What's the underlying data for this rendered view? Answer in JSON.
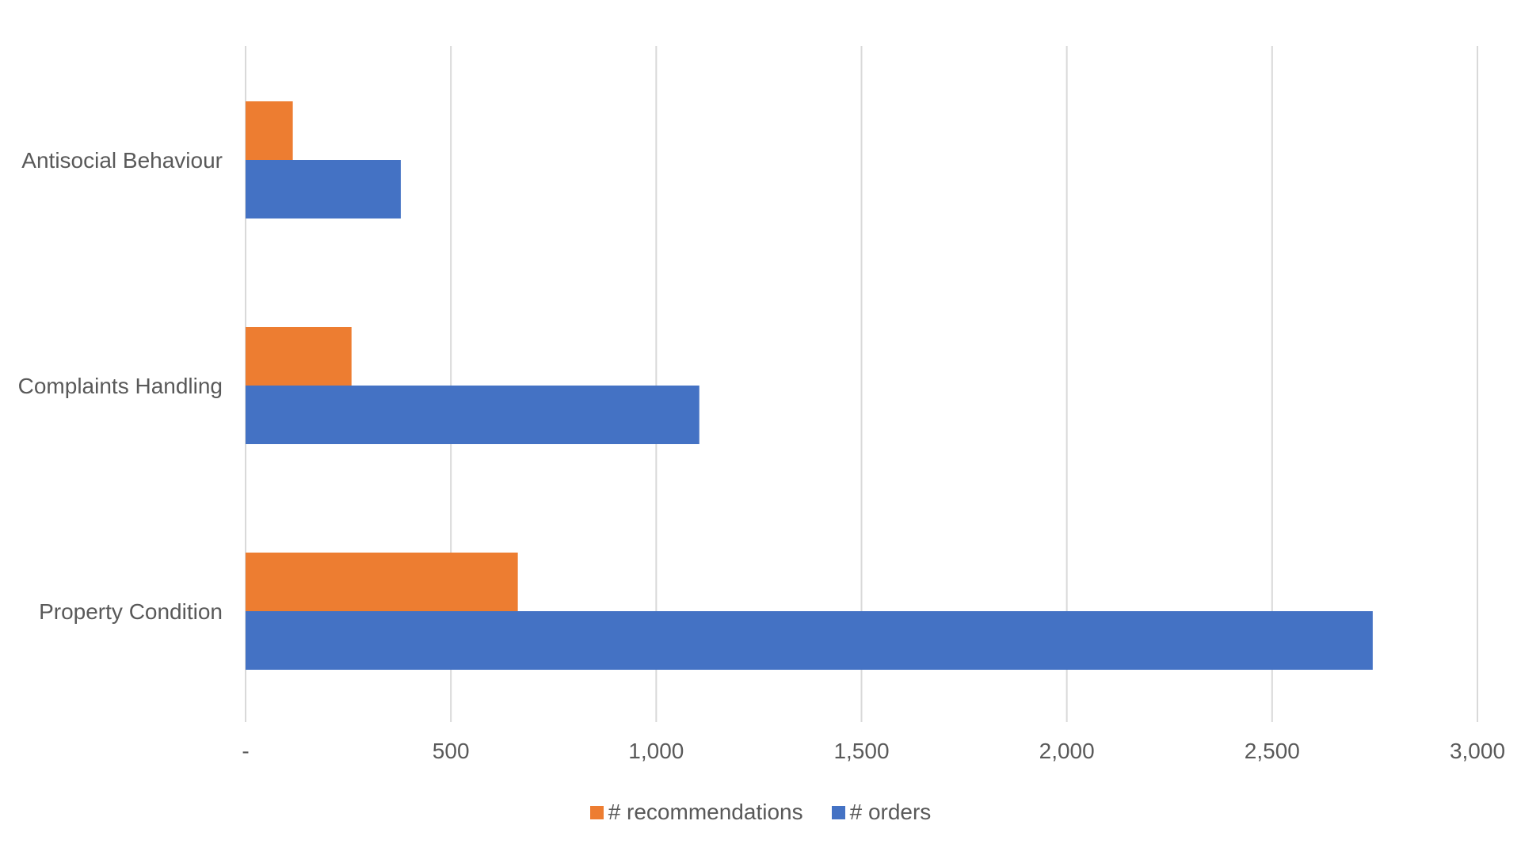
{
  "chart_data": {
    "type": "bar",
    "orientation": "horizontal",
    "categories": [
      "Antisocial Behaviour",
      "Complaints Handling",
      "Property Condition"
    ],
    "series": [
      {
        "name": "# recommendations",
        "color": "#ED7D31",
        "values": [
          115,
          258,
          663
        ]
      },
      {
        "name": "# orders",
        "color": "#4472C4",
        "values": [
          378,
          1105,
          2745
        ]
      }
    ],
    "xlim": [
      0,
      3000
    ],
    "xticks": [
      0,
      500,
      1000,
      1500,
      2000,
      2500,
      3000
    ],
    "xtick_labels": [
      "-",
      "500",
      "1,000",
      "1,500",
      "2,000",
      "2,500",
      "3,000"
    ],
    "grid": true,
    "gridline_color": "#D9D9D9",
    "text_color": "#595959",
    "legend_position": "bottom",
    "title": "",
    "xlabel": "",
    "ylabel": ""
  }
}
